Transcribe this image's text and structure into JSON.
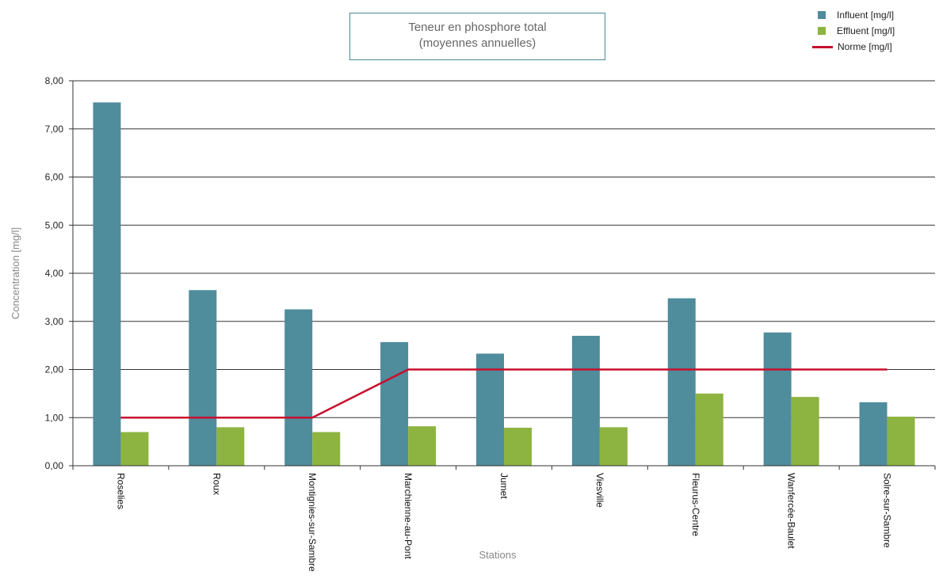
{
  "chart_data": {
    "type": "bar",
    "title": "Teneur en phosphore total",
    "subtitle": "(moyennes annuelles)",
    "xlabel": "Stations",
    "ylabel": "Concentration [mg/l]",
    "ylim": [
      0,
      8
    ],
    "yticks": [
      "0,00",
      "1,00",
      "2,00",
      "3,00",
      "4,00",
      "5,00",
      "6,00",
      "7,00",
      "8,00"
    ],
    "grid": true,
    "legend_position": "top-right",
    "categories": [
      "Roselies",
      "Roux",
      "Montignies-sur-Sambre",
      "Marchienne-au-Pont",
      "Jumet",
      "Viesville",
      "Fleurus-Centre",
      "Wanfercée-Baulet",
      "Solre-sur-Sambre"
    ],
    "series": [
      {
        "name": "Influent [mg/l]",
        "kind": "bar",
        "color": "#4f8c9c",
        "values": [
          7.55,
          3.65,
          3.25,
          2.57,
          2.33,
          2.7,
          3.48,
          2.77,
          1.32
        ]
      },
      {
        "name": "Effluent [mg/l]",
        "kind": "bar",
        "color": "#8db441",
        "values": [
          0.7,
          0.8,
          0.7,
          0.82,
          0.79,
          0.8,
          1.5,
          1.43,
          1.02
        ]
      },
      {
        "name": "Norme [mg/l]",
        "kind": "line",
        "color": "#c8102e",
        "values": [
          1,
          1,
          1,
          2,
          2,
          2,
          2,
          2,
          2
        ]
      }
    ]
  }
}
